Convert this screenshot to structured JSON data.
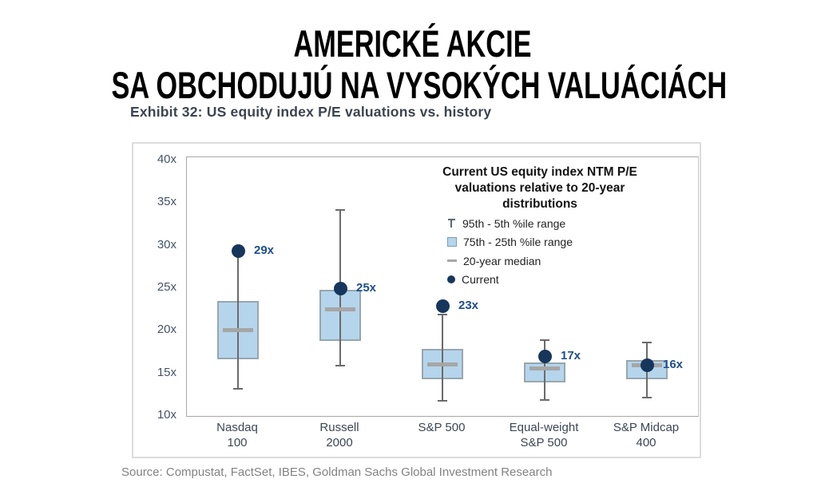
{
  "page": {
    "title_line1": "AMERICKÉ AKCIE",
    "title_line2": "SA OBCHODUJÚ NA VYSOKÝCH VALUÁCIÁCH"
  },
  "exhibit": {
    "heading": "Exhibit 32: US equity index P/E valuations vs. history",
    "source": "Source: Compustat, FactSet, IBES, Goldman Sachs Global Investment Research"
  },
  "chart_data": {
    "type": "boxplot",
    "title": "Current US equity index NTM P/E valuations relative to 20-year distributions",
    "title_lines": [
      "Current US equity index NTM P/E",
      "valuations relative to 20-year",
      "distributions"
    ],
    "legend_position": "upper-right",
    "grid": false,
    "legend": [
      {
        "symbol": "whisker-range",
        "label": "95th - 5th %ile range"
      },
      {
        "symbol": "box-range",
        "label": "75th - 25th %ile range"
      },
      {
        "symbol": "median-dash",
        "label": "20-year median"
      },
      {
        "symbol": "current-dot",
        "label": "Current"
      }
    ],
    "y_axis": {
      "ticks": [
        "40x",
        "35x",
        "30x",
        "25x",
        "20x",
        "15x",
        "10x"
      ],
      "min": 10,
      "max": 40,
      "step": 5,
      "unit": "x"
    },
    "ylim": [
      10,
      40
    ],
    "categories": [
      [
        "Nasdaq",
        "100"
      ],
      [
        "Russell",
        "2000"
      ],
      [
        "S&P 500"
      ],
      [
        "Equal-weight",
        "S&P 500"
      ],
      [
        "S&P Midcap",
        "400"
      ]
    ],
    "series": [
      {
        "category": "Nasdaq 100",
        "p95": 29.3,
        "p75": 23.5,
        "median": 20.0,
        "p25": 16.7,
        "p5": 13.2,
        "current": 29.4,
        "current_label": "29x"
      },
      {
        "category": "Russell 2000",
        "p95": 34.2,
        "p75": 24.8,
        "median": 22.5,
        "p25": 18.8,
        "p5": 15.9,
        "current": 25.0,
        "current_label": "25x"
      },
      {
        "category": "S&P 500",
        "p95": 21.9,
        "p75": 17.9,
        "median": 16.0,
        "p25": 14.3,
        "p5": 11.8,
        "current": 22.9,
        "current_label": "23x"
      },
      {
        "category": "Equal-weight S&P 500",
        "p95": 18.9,
        "p75": 16.3,
        "median": 15.5,
        "p25": 13.9,
        "p5": 11.9,
        "current": 17.0,
        "current_label": "17x"
      },
      {
        "category": "S&P Midcap 400",
        "p95": 18.6,
        "p75": 16.6,
        "median": 15.9,
        "p25": 14.3,
        "p5": 12.2,
        "current": 16.0,
        "current_label": "16x"
      }
    ],
    "colors": {
      "box_fill": "#b5d5ec",
      "box_border": "#98a6ad",
      "median": "#a6a6a6",
      "whisker": "#6b6b6b",
      "current_dot": "#16365c",
      "value_label": "#1f4e8c",
      "axis_text": "#44536a",
      "frame": "#a8a8a8"
    }
  }
}
